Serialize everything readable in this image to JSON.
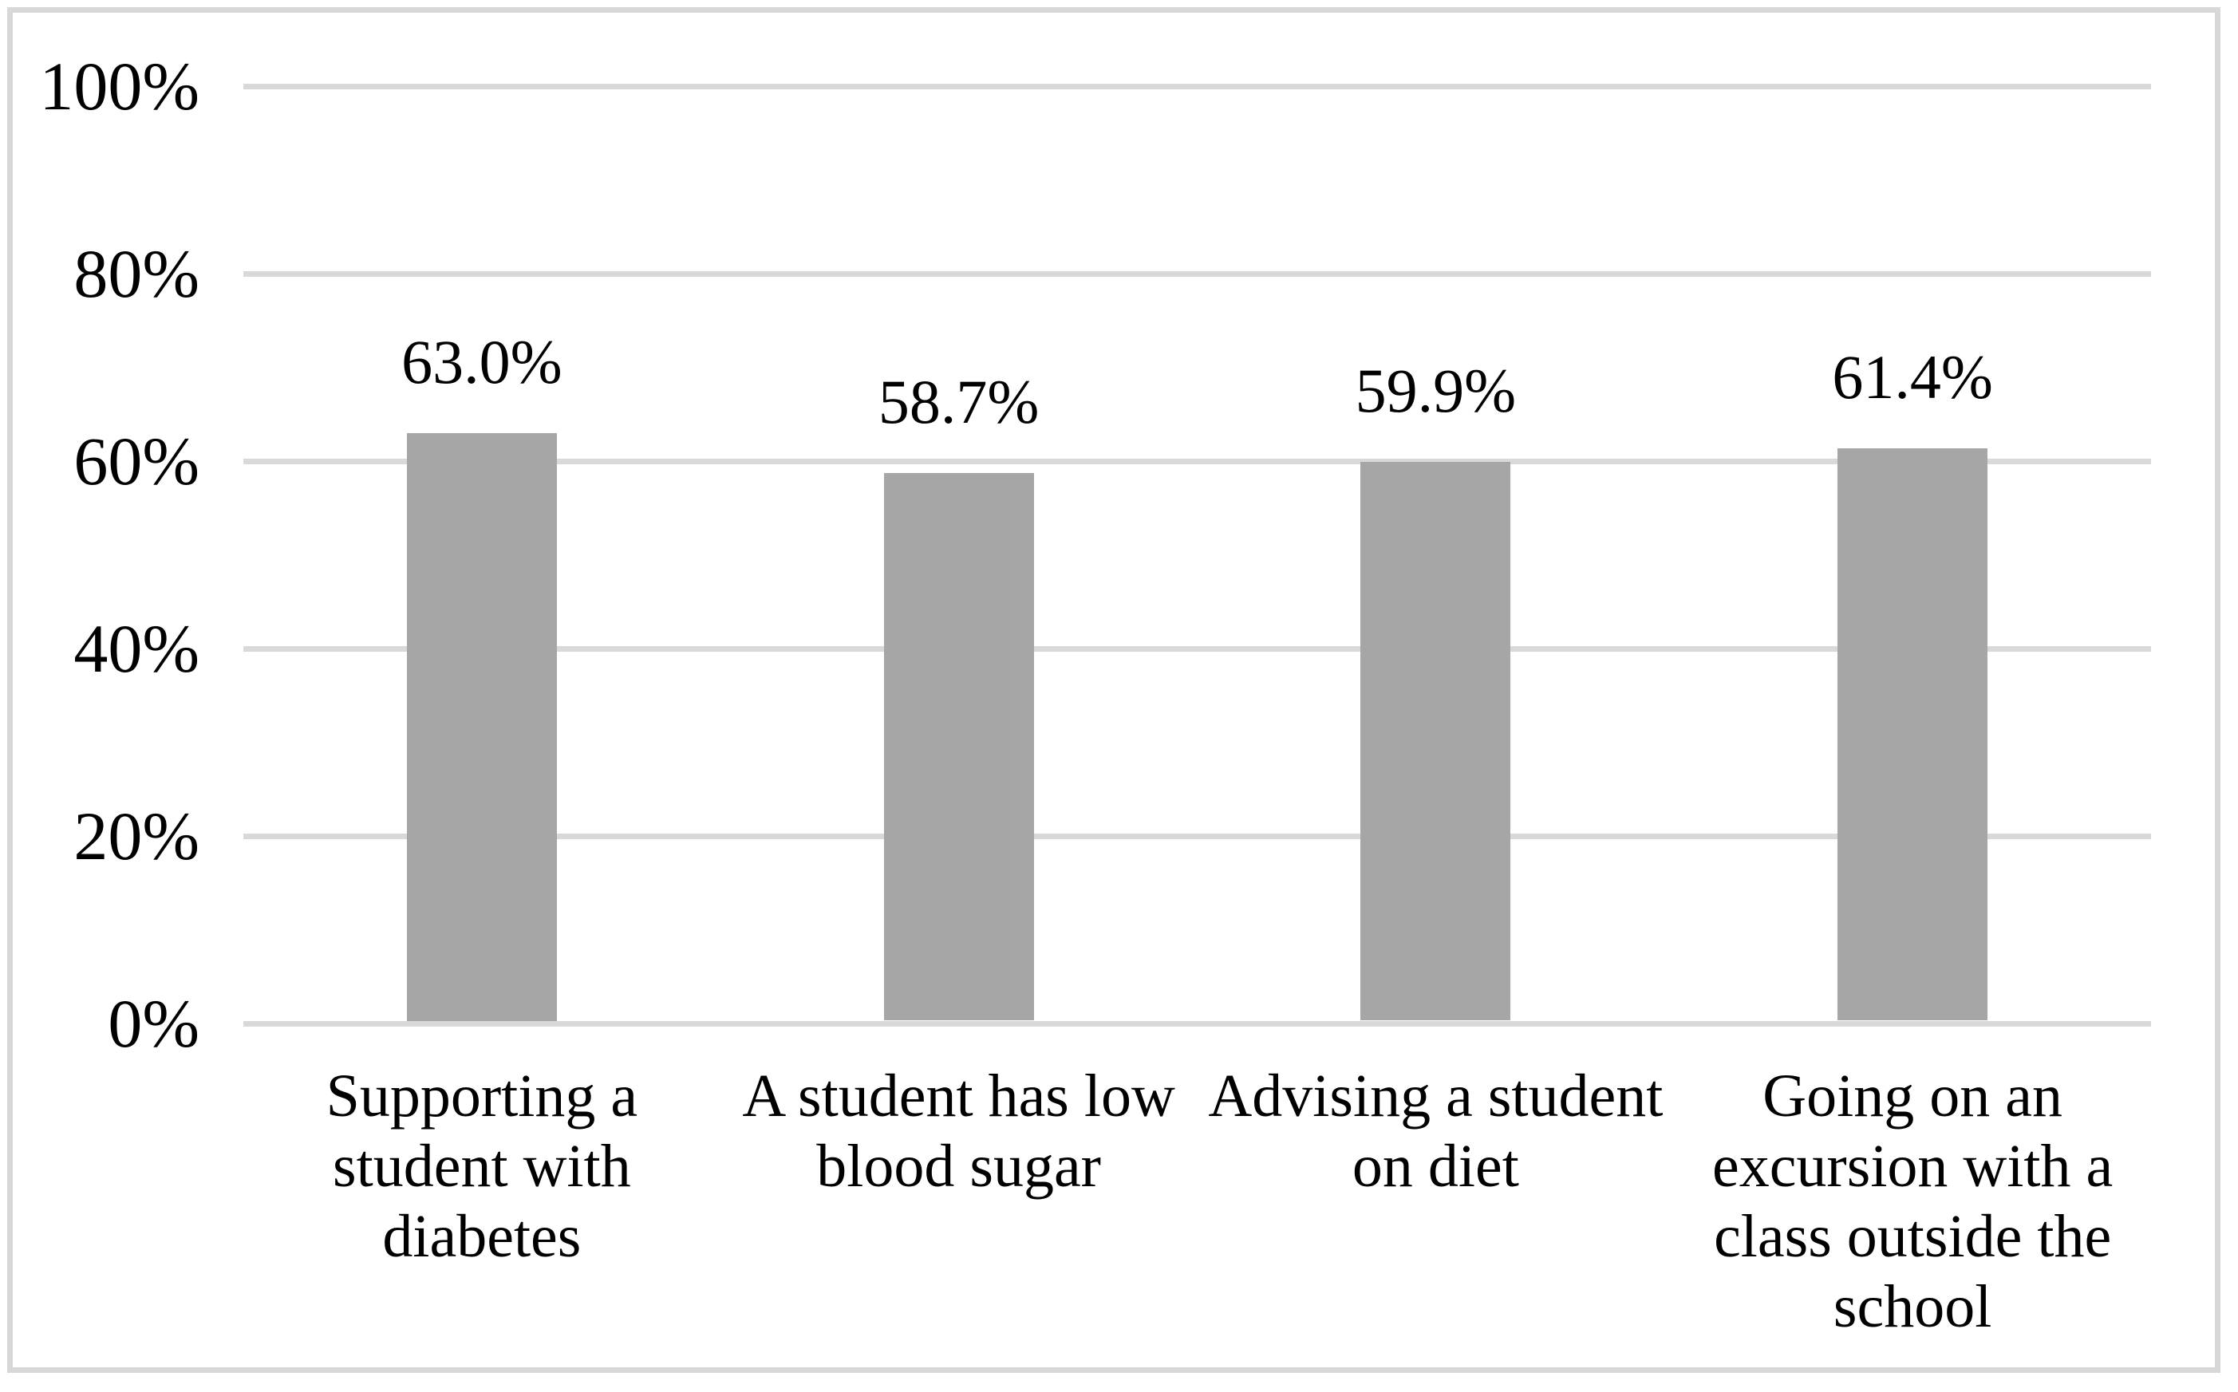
{
  "chart_data": {
    "type": "bar",
    "title": "",
    "xlabel": "",
    "ylabel": "",
    "categories": [
      "Supporting a\nstudent with\ndiabetes",
      "A student has low\nblood sugar",
      "Advising a student\non diet",
      "Going on an\nexcursion with a\nclass outside the\nschool"
    ],
    "values": [
      63.0,
      58.7,
      59.9,
      61.4
    ],
    "value_labels": [
      "63.0%",
      "58.7%",
      "59.9%",
      "61.4%"
    ],
    "yticks": [
      {
        "value": 0,
        "label": "0%"
      },
      {
        "value": 20,
        "label": "20%"
      },
      {
        "value": 40,
        "label": "40%"
      },
      {
        "value": 60,
        "label": "60%"
      },
      {
        "value": 80,
        "label": "80%"
      },
      {
        "value": 100,
        "label": "100%"
      }
    ],
    "ylim": [
      0,
      100
    ],
    "grid": true,
    "legend": false,
    "colors": {
      "bar_fill": "#A6A6A6",
      "gridline": "#D9D9D9",
      "frame_border": "#D8D8D8",
      "text": "#000000",
      "background": "#FFFFFF"
    }
  }
}
